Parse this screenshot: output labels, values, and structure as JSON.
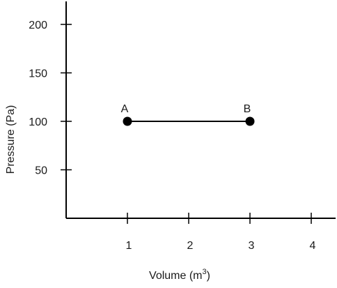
{
  "chart_data": {
    "type": "line",
    "xlabel": "Volume (m",
    "xlabel_sup": "3",
    "xlabel_close": ")",
    "ylabel": "Pressure (Pa)",
    "xlim": [
      0,
      4.4
    ],
    "ylim": [
      0,
      220
    ],
    "xticks": [
      1,
      2,
      3,
      4
    ],
    "yticks": [
      50,
      100,
      150,
      200
    ],
    "grid": false,
    "series": [
      {
        "points": [
          {
            "label": "A",
            "x": 1,
            "y": 100
          },
          {
            "label": "B",
            "x": 3,
            "y": 100
          }
        ]
      }
    ],
    "colors": {
      "line": "#000000",
      "axis": "#000000",
      "text": "#1a1a1a"
    }
  }
}
